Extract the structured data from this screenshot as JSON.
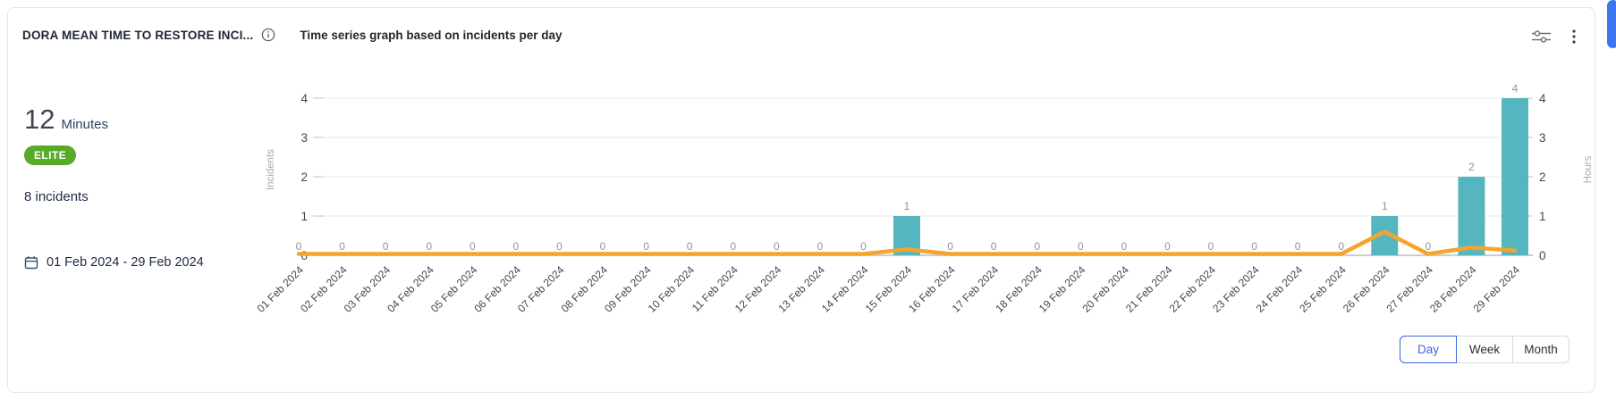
{
  "header": {
    "title": "DORA MEAN TIME TO RESTORE INCI...",
    "subtitle": "Time series graph based on incidents per day"
  },
  "summary": {
    "value": "12",
    "unit": "Minutes",
    "badge": "ELITE",
    "badge_color": "#57ab27",
    "incidents": "8 incidents",
    "date_range": "01 Feb 2024 - 29 Feb 2024"
  },
  "icons": {
    "info": "info-circle-icon",
    "filter": "sliders-filter-icon",
    "menu": "kebab-menu-icon",
    "calendar": "calendar-icon"
  },
  "controls": {
    "options": [
      {
        "label": "Day",
        "selected": true
      },
      {
        "label": "Week",
        "selected": false
      },
      {
        "label": "Month",
        "selected": false
      }
    ]
  },
  "colors": {
    "bar": "#4db2bc",
    "line": "#f6a42d",
    "accent_blue": "#3b66e3",
    "badge_green": "#57ab27",
    "grid": "#edeef1",
    "baseline": "#b8bec7",
    "tick_text": "#43474e",
    "data_label": "#8e929a",
    "axis_title": "#a6a9af"
  },
  "chart_data": {
    "type": "bar",
    "title": "Time series graph based on incidents per day",
    "categories": [
      "01 Feb 2024",
      "02 Feb 2024",
      "03 Feb 2024",
      "04 Feb 2024",
      "05 Feb 2024",
      "06 Feb 2024",
      "07 Feb 2024",
      "08 Feb 2024",
      "09 Feb 2024",
      "10 Feb 2024",
      "11 Feb 2024",
      "12 Feb 2024",
      "13 Feb 2024",
      "14 Feb 2024",
      "15 Feb 2024",
      "16 Feb 2024",
      "17 Feb 2024",
      "18 Feb 2024",
      "19 Feb 2024",
      "20 Feb 2024",
      "21 Feb 2024",
      "22 Feb 2024",
      "23 Feb 2024",
      "24 Feb 2024",
      "25 Feb 2024",
      "26 Feb 2024",
      "27 Feb 2024",
      "28 Feb 2024",
      "29 Feb 2024"
    ],
    "series": [
      {
        "name": "Incidents",
        "render": "bar",
        "color": "#4db2bc",
        "values": [
          0,
          0,
          0,
          0,
          0,
          0,
          0,
          0,
          0,
          0,
          0,
          0,
          0,
          0,
          1,
          0,
          0,
          0,
          0,
          0,
          0,
          0,
          0,
          0,
          0,
          1,
          0,
          2,
          4
        ]
      },
      {
        "name": "Hours",
        "render": "line",
        "color": "#f6a42d",
        "values": [
          0,
          0,
          0,
          0,
          0,
          0,
          0,
          0,
          0,
          0,
          0,
          0,
          0,
          0,
          0.15,
          0,
          0,
          0,
          0,
          0,
          0,
          0,
          0,
          0,
          0,
          0.6,
          0,
          0.2,
          0.12
        ]
      }
    ],
    "left_axis": {
      "label": "Incidents",
      "ticks": [
        0,
        1,
        2,
        3,
        4
      ]
    },
    "right_axis": {
      "label": "Hours",
      "ticks": [
        0,
        1,
        2,
        3,
        4
      ]
    },
    "ylim": [
      0,
      4.5
    ],
    "grid": true,
    "legend": false
  }
}
